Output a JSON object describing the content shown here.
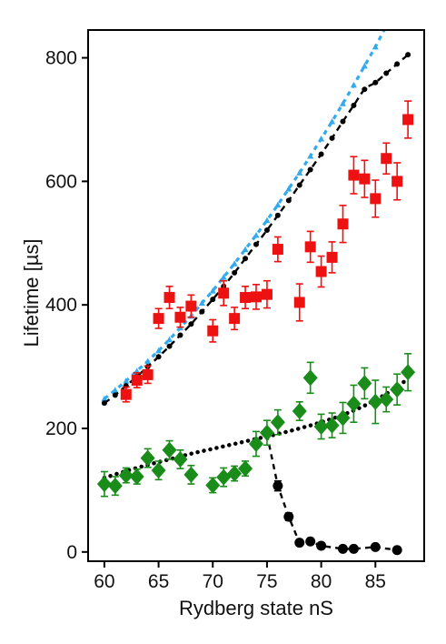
{
  "chart_data": {
    "type": "scatter",
    "xlabel": "Rydberg state nS",
    "ylabel": "Lifetime [µs]",
    "xlim": [
      58.5,
      89.5
    ],
    "ylim": [
      -15,
      845
    ],
    "x_ticks": [
      60,
      65,
      70,
      75,
      80,
      85
    ],
    "y_ticks": [
      0,
      200,
      400,
      600,
      800
    ],
    "grid": false,
    "legend": "none",
    "series": [
      {
        "marker": "square",
        "color": "#ee1111",
        "points": [
          {
            "x": 62,
            "y": 255,
            "err": 12
          },
          {
            "x": 63,
            "y": 278,
            "err": 12
          },
          {
            "x": 64,
            "y": 287,
            "err": 14
          },
          {
            "x": 65,
            "y": 378,
            "err": 16
          },
          {
            "x": 66,
            "y": 412,
            "err": 18
          },
          {
            "x": 67,
            "y": 380,
            "err": 16
          },
          {
            "x": 68,
            "y": 398,
            "err": 18
          },
          {
            "x": 70,
            "y": 358,
            "err": 18
          },
          {
            "x": 71,
            "y": 419,
            "err": 20
          },
          {
            "x": 72,
            "y": 378,
            "err": 18
          },
          {
            "x": 73,
            "y": 412,
            "err": 18
          },
          {
            "x": 74,
            "y": 413,
            "err": 20
          },
          {
            "x": 75,
            "y": 417,
            "err": 22
          },
          {
            "x": 76,
            "y": 490,
            "err": 20
          },
          {
            "x": 78,
            "y": 404,
            "err": 30
          },
          {
            "x": 79,
            "y": 494,
            "err": 25
          },
          {
            "x": 80,
            "y": 454,
            "err": 25
          },
          {
            "x": 81,
            "y": 477,
            "err": 25
          },
          {
            "x": 82,
            "y": 531,
            "err": 30
          },
          {
            "x": 83,
            "y": 610,
            "err": 30
          },
          {
            "x": 84,
            "y": 604,
            "err": 30
          },
          {
            "x": 85,
            "y": 572,
            "err": 30
          },
          {
            "x": 86,
            "y": 637,
            "err": 25
          },
          {
            "x": 87,
            "y": 600,
            "err": 30
          },
          {
            "x": 88,
            "y": 700,
            "err": 30
          }
        ]
      },
      {
        "marker": "diamond",
        "color": "#1a8c1a",
        "points": [
          {
            "x": 60,
            "y": 110,
            "err": 20
          },
          {
            "x": 61,
            "y": 107,
            "err": 15
          },
          {
            "x": 62,
            "y": 124,
            "err": 12
          },
          {
            "x": 63,
            "y": 122,
            "err": 12
          },
          {
            "x": 64,
            "y": 152,
            "err": 15
          },
          {
            "x": 65,
            "y": 132,
            "err": 15
          },
          {
            "x": 66,
            "y": 165,
            "err": 15
          },
          {
            "x": 67,
            "y": 150,
            "err": 15
          },
          {
            "x": 68,
            "y": 125,
            "err": 15
          },
          {
            "x": 70,
            "y": 108,
            "err": 12
          },
          {
            "x": 71,
            "y": 121,
            "err": 15
          },
          {
            "x": 72,
            "y": 127,
            "err": 12
          },
          {
            "x": 73,
            "y": 135,
            "err": 12
          },
          {
            "x": 74,
            "y": 175,
            "err": 20
          },
          {
            "x": 75,
            "y": 193,
            "err": 20
          },
          {
            "x": 76,
            "y": 210,
            "err": 20
          },
          {
            "x": 78,
            "y": 228,
            "err": 15
          },
          {
            "x": 79,
            "y": 282,
            "err": 25
          },
          {
            "x": 80,
            "y": 203,
            "err": 20
          },
          {
            "x": 81,
            "y": 205,
            "err": 20
          },
          {
            "x": 82,
            "y": 217,
            "err": 25
          },
          {
            "x": 83,
            "y": 240,
            "err": 30
          },
          {
            "x": 84,
            "y": 273,
            "err": 25
          },
          {
            "x": 85,
            "y": 243,
            "err": 35
          },
          {
            "x": 86,
            "y": 247,
            "err": 20
          },
          {
            "x": 87,
            "y": 263,
            "err": 25
          },
          {
            "x": 88,
            "y": 291,
            "err": 30
          }
        ]
      },
      {
        "marker": "circle",
        "color": "#000000",
        "points": [
          {
            "x": 76,
            "y": 107,
            "err": 8
          },
          {
            "x": 77,
            "y": 57,
            "err": 6
          },
          {
            "x": 78,
            "y": 15,
            "err": 3
          },
          {
            "x": 79,
            "y": 17,
            "err": 3
          },
          {
            "x": 80,
            "y": 10,
            "err": 2
          },
          {
            "x": 82,
            "y": 5,
            "err": 2
          },
          {
            "x": 83,
            "y": 5,
            "err": 2
          },
          {
            "x": 85,
            "y": 8,
            "err": 2
          },
          {
            "x": 87,
            "y": 3,
            "err": 2
          }
        ]
      }
    ],
    "curves": [
      {
        "style": "dotted-triangles",
        "color": "#33aaee",
        "x": [
          60,
          61,
          62,
          63,
          64,
          65,
          66,
          67,
          68,
          69,
          70,
          71,
          72,
          73,
          74,
          75,
          76,
          77,
          78,
          79,
          80,
          81,
          82,
          83,
          84,
          85,
          86,
          87,
          88
        ],
        "y": [
          248,
          262,
          277,
          293,
          309,
          326,
          344,
          363,
          382,
          403,
          423,
          445,
          467,
          490,
          513,
          537,
          562,
          588,
          614,
          641,
          669,
          697,
          726,
          756,
          787,
          818,
          850,
          870,
          893
        ]
      },
      {
        "style": "dashed-dots",
        "color": "#000000",
        "x": [
          60,
          61,
          62,
          63,
          64,
          65,
          66,
          67,
          68,
          69,
          70,
          71,
          72,
          73,
          74,
          75,
          76,
          77,
          78,
          79,
          80,
          81,
          82,
          83,
          84,
          85,
          86,
          87,
          88
        ],
        "y": [
          241,
          254,
          269,
          284,
          300,
          316,
          333,
          351,
          369,
          389,
          409,
          430,
          452,
          475,
          498,
          521,
          545,
          569,
          594,
          619,
          644,
          670,
          697,
          723,
          749,
          760,
          775,
          790,
          805
        ]
      },
      {
        "style": "dotted",
        "color": "#000000",
        "x": [
          60,
          62,
          64,
          66,
          68,
          70,
          72,
          74,
          76,
          78,
          80,
          82,
          84,
          86,
          88
        ],
        "y": [
          120,
          131,
          141,
          150,
          159,
          167,
          175,
          183,
          191,
          200,
          210,
          222,
          237,
          256,
          280
        ]
      },
      {
        "style": "dashed",
        "color": "#000000",
        "x": [
          75,
          76,
          77,
          78,
          79,
          80,
          82,
          83,
          85,
          87
        ],
        "y": [
          190,
          107,
          57,
          15,
          17,
          10,
          5,
          5,
          8,
          3
        ]
      }
    ]
  }
}
